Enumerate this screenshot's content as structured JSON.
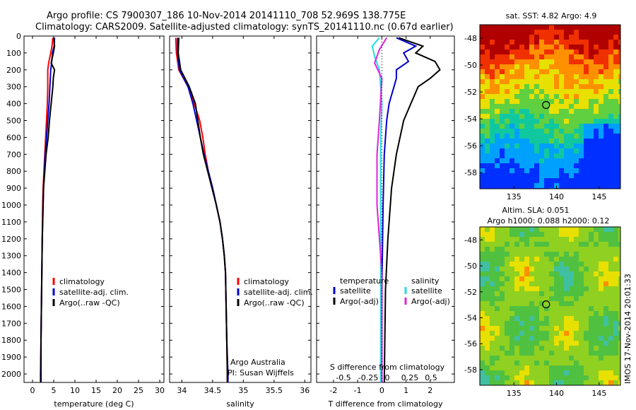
{
  "header": {
    "line1": "Argo profile: CS 7900307_186 10-Nov-2014 20141110_708 52.969S 138.775E",
    "line2": "Climatology: CARS2009. Satellite-adjusted climatology: synTS_20141110.nc (0.67d earlier)"
  },
  "colors": {
    "climatology": "#ff0000",
    "satellite": "#0000cc",
    "argo": "#000000",
    "cyan": "#22dddd",
    "magenta": "#dd22dd"
  },
  "chart_data": [
    {
      "type": "line",
      "id": "temp",
      "xlabel": "temperature (deg C)",
      "xlim": [
        -2,
        31
      ],
      "ylim": [
        2050,
        0
      ],
      "xticks": [
        "0",
        "5",
        "10",
        "15",
        "20",
        "25",
        "30"
      ],
      "yticks": [
        "0",
        "100",
        "200",
        "300",
        "400",
        "500",
        "600",
        "700",
        "800",
        "900",
        "1000",
        "1100",
        "1200",
        "1300",
        "1400",
        "1500",
        "1600",
        "1700",
        "1800",
        "1900",
        "2000"
      ],
      "legend": [
        "climatology",
        "satellite-adj. clim.",
        "Argo(..raw -QC)"
      ],
      "series": [
        {
          "name": "climatology",
          "color": "#ff0000",
          "points": [
            [
              4.8,
              10
            ],
            [
              4.6,
              60
            ],
            [
              4.3,
              100
            ],
            [
              3.8,
              160
            ],
            [
              3.6,
              200
            ],
            [
              3.6,
              300
            ],
            [
              3.5,
              400
            ],
            [
              3.3,
              500
            ],
            [
              3.1,
              600
            ],
            [
              2.9,
              700
            ],
            [
              2.7,
              800
            ],
            [
              2.5,
              900
            ],
            [
              2.4,
              1000
            ],
            [
              2.3,
              1200
            ],
            [
              2.2,
              1400
            ],
            [
              2.1,
              1600
            ],
            [
              2.0,
              1800
            ],
            [
              1.9,
              2000
            ],
            [
              1.9,
              2050
            ]
          ]
        },
        {
          "name": "satellite-adj. clim.",
          "color": "#0000cc",
          "points": [
            [
              5.2,
              10
            ],
            [
              5.1,
              60
            ],
            [
              4.7,
              100
            ],
            [
              4.5,
              160
            ],
            [
              4.3,
              200
            ],
            [
              4.1,
              300
            ],
            [
              3.9,
              400
            ],
            [
              3.6,
              500
            ],
            [
              3.3,
              600
            ],
            [
              3.0,
              700
            ],
            [
              2.8,
              800
            ],
            [
              2.6,
              900
            ],
            [
              2.5,
              1000
            ],
            [
              2.3,
              1200
            ],
            [
              2.2,
              1400
            ],
            [
              2.1,
              1600
            ],
            [
              2.0,
              1800
            ],
            [
              1.9,
              2000
            ],
            [
              1.9,
              2050
            ]
          ]
        },
        {
          "name": "Argo(..raw -QC)",
          "color": "#000000",
          "points": [
            [
              5.0,
              10
            ],
            [
              5.2,
              60
            ],
            [
              4.9,
              100
            ],
            [
              4.4,
              160
            ],
            [
              5.2,
              200
            ],
            [
              4.9,
              250
            ],
            [
              4.8,
              300
            ],
            [
              4.6,
              350
            ],
            [
              4.4,
              400
            ],
            [
              4.0,
              500
            ],
            [
              3.7,
              600
            ],
            [
              3.2,
              700
            ],
            [
              2.9,
              800
            ],
            [
              2.6,
              900
            ],
            [
              2.5,
              1000
            ],
            [
              2.3,
              1200
            ],
            [
              2.2,
              1400
            ],
            [
              2.1,
              1600
            ],
            [
              2.0,
              1800
            ],
            [
              2.0,
              2000
            ],
            [
              2.0,
              2050
            ]
          ]
        }
      ]
    },
    {
      "type": "line",
      "id": "sal",
      "xlabel": "salinity",
      "xlim": [
        33.8,
        36.1
      ],
      "ylim": [
        2050,
        0
      ],
      "xticks": [
        "34",
        "34.5",
        "35",
        "35.5",
        "36"
      ],
      "legend": [
        "climatology",
        "satellite-adj. clim.",
        "Argo(..raw -QC)"
      ],
      "annotations": [
        "Argo Australia",
        "PI: Susan Wijffels"
      ],
      "series": [
        {
          "name": "climatology",
          "color": "#ff0000",
          "points": [
            [
              33.9,
              10
            ],
            [
              33.91,
              100
            ],
            [
              33.95,
              200
            ],
            [
              34.1,
              300
            ],
            [
              34.2,
              400
            ],
            [
              34.29,
              500
            ],
            [
              34.34,
              600
            ],
            [
              34.38,
              700
            ],
            [
              34.43,
              800
            ],
            [
              34.5,
              900
            ],
            [
              34.56,
              1000
            ],
            [
              34.62,
              1100
            ],
            [
              34.66,
              1200
            ],
            [
              34.69,
              1300
            ],
            [
              34.71,
              1400
            ],
            [
              34.72,
              1600
            ],
            [
              34.73,
              1800
            ],
            [
              34.74,
              2000
            ],
            [
              34.74,
              2050
            ]
          ]
        },
        {
          "name": "satellite-adj. clim.",
          "color": "#0000cc",
          "points": [
            [
              33.93,
              10
            ],
            [
              33.93,
              100
            ],
            [
              33.96,
              200
            ],
            [
              34.1,
              300
            ],
            [
              34.18,
              400
            ],
            [
              34.24,
              500
            ],
            [
              34.3,
              600
            ],
            [
              34.36,
              700
            ],
            [
              34.43,
              800
            ],
            [
              34.5,
              900
            ],
            [
              34.56,
              1000
            ],
            [
              34.62,
              1100
            ],
            [
              34.66,
              1200
            ],
            [
              34.69,
              1300
            ],
            [
              34.71,
              1400
            ],
            [
              34.72,
              1600
            ],
            [
              34.73,
              1800
            ],
            [
              34.75,
              2000
            ],
            [
              34.75,
              2050
            ]
          ]
        },
        {
          "name": "Argo(..raw -QC)",
          "color": "#000000",
          "points": [
            [
              33.95,
              10
            ],
            [
              33.94,
              100
            ],
            [
              33.98,
              200
            ],
            [
              34.12,
              300
            ],
            [
              34.22,
              400
            ],
            [
              34.26,
              500
            ],
            [
              34.3,
              600
            ],
            [
              34.35,
              700
            ],
            [
              34.42,
              800
            ],
            [
              34.49,
              900
            ],
            [
              34.56,
              1000
            ],
            [
              34.62,
              1100
            ],
            [
              34.66,
              1200
            ],
            [
              34.69,
              1300
            ],
            [
              34.71,
              1400
            ],
            [
              34.72,
              1600
            ],
            [
              34.73,
              1800
            ],
            [
              34.74,
              2000
            ],
            [
              34.74,
              2050
            ]
          ]
        }
      ]
    },
    {
      "type": "line",
      "id": "diff",
      "xlabel": "T difference from climatology",
      "toplabel": "S difference from climatology",
      "xlim": [
        -2.7,
        3.0
      ],
      "ylim": [
        2050,
        0
      ],
      "xticks": [
        "-2",
        "-1",
        "0",
        "1",
        "2"
      ],
      "sticks": [
        "-0.5",
        "-0.25",
        "0",
        "0.25",
        "0.5"
      ],
      "legend_temp": [
        "temperature",
        "satellite",
        "Argo(-adj)"
      ],
      "legend_sal": [
        "salinity",
        "satellite",
        "Argo(-adj)"
      ],
      "series": [
        {
          "name": "satellite",
          "color": "#0000cc",
          "points": [
            [
              0.6,
              10
            ],
            [
              1.4,
              60
            ],
            [
              0.9,
              100
            ],
            [
              1.1,
              150
            ],
            [
              0.6,
              200
            ],
            [
              0.6,
              250
            ],
            [
              0.5,
              300
            ],
            [
              0.3,
              400
            ],
            [
              0.2,
              500
            ],
            [
              0.1,
              700
            ],
            [
              0.05,
              1000
            ],
            [
              0.0,
              1500
            ],
            [
              0.0,
              2050
            ]
          ]
        },
        {
          "name": "Argo(-adj)",
          "color": "#000000",
          "points": [
            [
              0.7,
              10
            ],
            [
              1.7,
              60
            ],
            [
              1.4,
              100
            ],
            [
              2.2,
              150
            ],
            [
              2.4,
              200
            ],
            [
              2.0,
              250
            ],
            [
              1.5,
              300
            ],
            [
              1.2,
              400
            ],
            [
              0.9,
              500
            ],
            [
              0.6,
              700
            ],
            [
              0.4,
              900
            ],
            [
              0.25,
              1200
            ],
            [
              0.15,
              1500
            ],
            [
              0.1,
              2050
            ]
          ]
        },
        {
          "name": "salinity satellite",
          "color": "#22dddd",
          "points": [
            [
              -0.1,
              10
            ],
            [
              -0.4,
              60
            ],
            [
              -0.3,
              120
            ],
            [
              -0.1,
              200
            ],
            [
              0.0,
              400
            ],
            [
              -0.05,
              600
            ],
            [
              -0.05,
              1000
            ],
            [
              -0.05,
              2050
            ]
          ]
        },
        {
          "name": "salinity Argo(-adj)",
          "color": "#dd22dd",
          "points": [
            [
              0.2,
              10
            ],
            [
              -0.1,
              80
            ],
            [
              -0.3,
              160
            ],
            [
              0.0,
              250
            ],
            [
              -0.1,
              500
            ],
            [
              -0.2,
              700
            ],
            [
              -0.2,
              1000
            ],
            [
              0.0,
              1400
            ],
            [
              0.0,
              2050
            ]
          ]
        }
      ]
    },
    {
      "type": "heatmap",
      "id": "sst",
      "title": "sat. SST: 4.82  Argo: 4.9",
      "xlim": [
        131,
        147.5
      ],
      "ylim": [
        -59.2,
        -47
      ],
      "xticks": [
        "135",
        "140",
        "145"
      ],
      "yticks": [
        "-48",
        "-50",
        "-52",
        "-54",
        "-56",
        "-58"
      ],
      "marker": [
        138.775,
        -52.969
      ]
    },
    {
      "type": "heatmap",
      "id": "sla",
      "title": "Altim. SLA: 0.051",
      "subtitle": "Argo h1000: 0.088 h2000: 0.12",
      "xlim": [
        131,
        147.5
      ],
      "ylim": [
        -59.2,
        -47
      ],
      "xticks": [
        "135",
        "140",
        "145"
      ],
      "yticks": [
        "-48",
        "-50",
        "-52",
        "-54",
        "-56",
        "-58"
      ],
      "marker": [
        138.775,
        -52.969
      ]
    }
  ],
  "stamp": "IMOS 17-Nov-2014 20:01:33"
}
